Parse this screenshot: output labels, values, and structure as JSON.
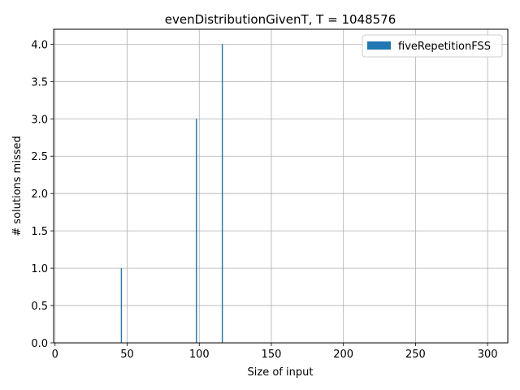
{
  "chart_data": {
    "type": "bar",
    "title": "evenDistributionGivenT, T = 1048576",
    "xlabel": "Size of input",
    "ylabel": "# solutions missed",
    "xlim": [
      -1,
      314
    ],
    "ylim": [
      0,
      4.2
    ],
    "xticks": [
      0,
      50,
      100,
      150,
      200,
      250,
      300
    ],
    "yticks": [
      0.0,
      0.5,
      1.0,
      1.5,
      2.0,
      2.5,
      3.0,
      3.5,
      4.0
    ],
    "xtick_labels": [
      "0",
      "50",
      "100",
      "150",
      "200",
      "250",
      "300"
    ],
    "ytick_labels": [
      "0.0",
      "0.5",
      "1.0",
      "1.5",
      "2.0",
      "2.5",
      "3.0",
      "3.5",
      "4.0"
    ],
    "grid": true,
    "legend_position": "top-right",
    "series": [
      {
        "name": "fiveRepetitionFSS",
        "color": "#1f77b4",
        "points": [
          {
            "x": 46,
            "y": 1
          },
          {
            "x": 98,
            "y": 3
          },
          {
            "x": 116,
            "y": 4
          }
        ]
      }
    ]
  }
}
